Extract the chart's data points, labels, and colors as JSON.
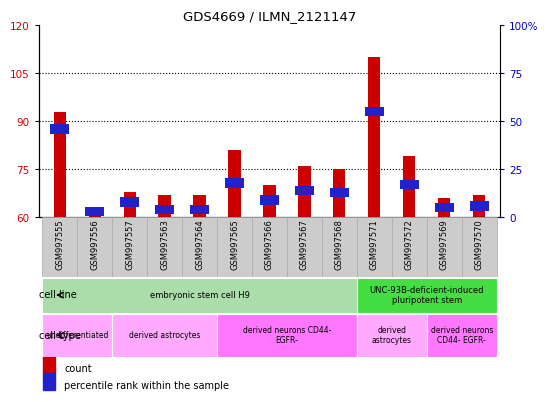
{
  "title": "GDS4669 / ILMN_2121147",
  "samples": [
    "GSM997555",
    "GSM997556",
    "GSM997557",
    "GSM997563",
    "GSM997564",
    "GSM997565",
    "GSM997566",
    "GSM997567",
    "GSM997568",
    "GSM997571",
    "GSM997572",
    "GSM997569",
    "GSM997570"
  ],
  "count_values": [
    93,
    63,
    68,
    67,
    67,
    81,
    70,
    76,
    75,
    110,
    79,
    66,
    67
  ],
  "percentile_values": [
    46,
    3,
    8,
    4,
    4,
    18,
    9,
    14,
    13,
    55,
    17,
    5,
    6
  ],
  "ylim_left": [
    60,
    120
  ],
  "ylim_right": [
    0,
    100
  ],
  "left_ticks": [
    60,
    75,
    90,
    105,
    120
  ],
  "right_ticks": [
    0,
    25,
    50,
    75,
    100
  ],
  "left_tick_labels": [
    "60",
    "75",
    "90",
    "105",
    "120"
  ],
  "right_tick_labels": [
    "0",
    "25",
    "50",
    "75",
    "100%"
  ],
  "hlines": [
    75,
    90,
    105
  ],
  "bar_color_red": "#cc0000",
  "bar_color_blue": "#2222cc",
  "cell_line_data": [
    {
      "label": "embryonic stem cell H9",
      "start": 0,
      "end": 9,
      "color": "#aaddaa"
    },
    {
      "label": "UNC-93B-deficient-induced\npluripotent stem",
      "start": 9,
      "end": 13,
      "color": "#44dd44"
    }
  ],
  "cell_type_data": [
    {
      "label": "undifferentiated",
      "start": 0,
      "end": 2,
      "color": "#ffaaff"
    },
    {
      "label": "derived astrocytes",
      "start": 2,
      "end": 5,
      "color": "#ffaaff"
    },
    {
      "label": "derived neurons CD44-\nEGFR-",
      "start": 5,
      "end": 9,
      "color": "#ff77ff"
    },
    {
      "label": "derived\nastrocytes",
      "start": 9,
      "end": 11,
      "color": "#ffaaff"
    },
    {
      "label": "derived neurons\nCD44- EGFR-",
      "start": 11,
      "end": 13,
      "color": "#ff77ff"
    }
  ],
  "tick_label_color_left": "#cc0000",
  "tick_label_color_right": "#0000bb",
  "xtick_bg_color": "#cccccc",
  "xtick_border_color": "#aaaaaa"
}
